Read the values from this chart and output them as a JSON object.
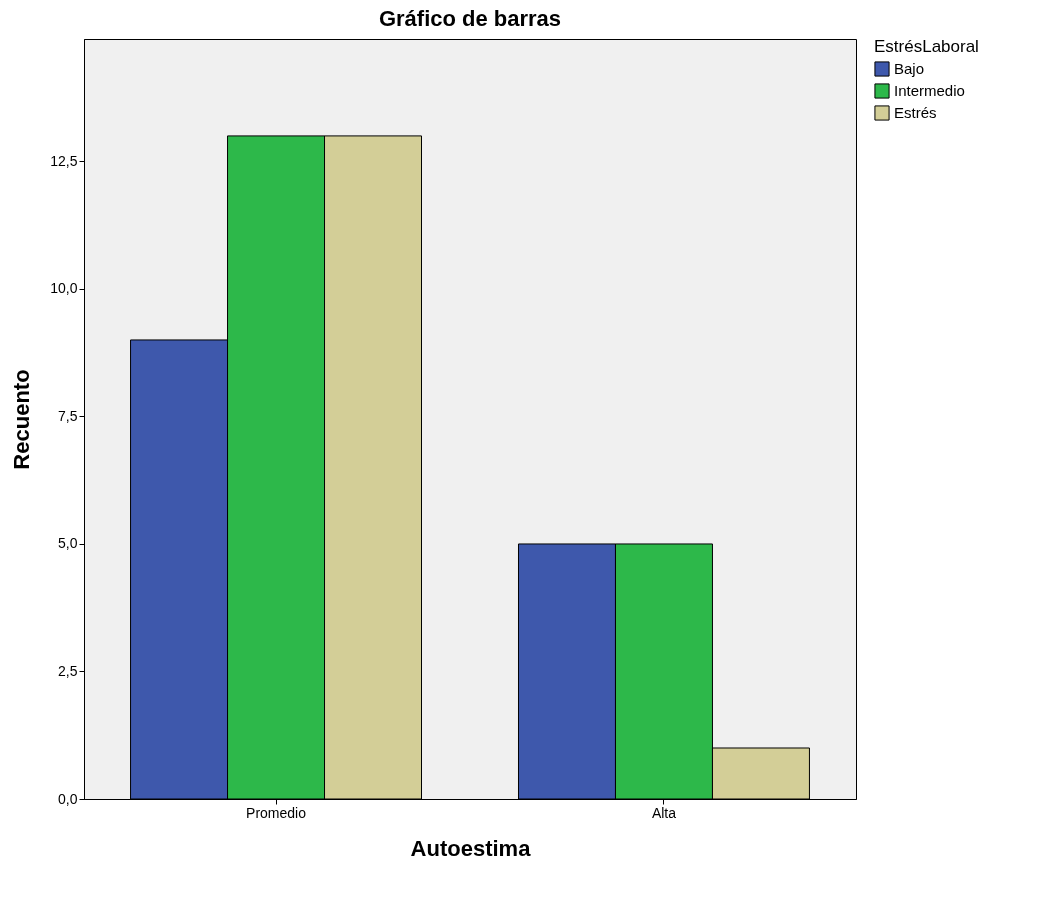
{
  "chart_data": {
    "type": "bar",
    "title": "Gráfico de barras",
    "xlabel": "Autoestima",
    "ylabel": "Recuento",
    "legend_title": "EstrésLaboral",
    "categories": [
      "Promedio",
      "Alta"
    ],
    "series": [
      {
        "name": "Bajo",
        "color": "#3e58ac",
        "values": [
          9,
          5
        ]
      },
      {
        "name": "Intermedio",
        "color": "#2db84a",
        "values": [
          13,
          5
        ]
      },
      {
        "name": "Estrés",
        "color": "#d3ce97",
        "values": [
          13,
          1
        ]
      }
    ],
    "ylim": [
      0,
      14.9
    ],
    "yticks": [
      {
        "value": 0,
        "label": "0,0"
      },
      {
        "value": 2.5,
        "label": "2,5"
      },
      {
        "value": 5,
        "label": "5,0"
      },
      {
        "value": 7.5,
        "label": "7,5"
      },
      {
        "value": 10,
        "label": "10,0"
      },
      {
        "value": 12.5,
        "label": "12,5"
      }
    ],
    "legend": "right"
  }
}
